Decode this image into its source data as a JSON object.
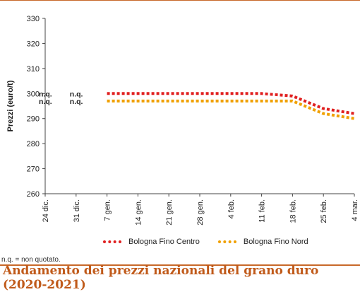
{
  "chart_data": {
    "type": "line",
    "title": "Andamento dei prezzi nazionali del grano duro (2020-2021)",
    "xlabel": "",
    "ylabel": "Prezzi (euro/t)",
    "ylim": [
      260,
      330
    ],
    "yticks": [
      260,
      270,
      280,
      290,
      300,
      310,
      320,
      330
    ],
    "categories": [
      "24 dic.",
      "31 dic.",
      "7 gen.",
      "14 gen.",
      "21 gen.",
      "28 gen.",
      "4 feb.",
      "11 feb.",
      "18 feb.",
      "25 feb.",
      "4 mar."
    ],
    "series": [
      {
        "name": "Bologna Fino Centro",
        "color": "#e02020",
        "values": [
          null,
          null,
          300,
          300,
          300,
          300,
          300,
          300,
          299,
          294,
          292
        ]
      },
      {
        "name": "Bologna Fino Nord",
        "color": "#f0a000",
        "values": [
          null,
          null,
          297,
          297,
          297,
          297,
          297,
          297,
          297,
          292,
          290
        ]
      }
    ],
    "annotations": [
      {
        "category": "24 dic.",
        "series": "Bologna Fino Centro",
        "text": "n.q.",
        "y": 300
      },
      {
        "category": "24 dic.",
        "series": "Bologna Fino Nord",
        "text": "n.q.",
        "y": 297
      },
      {
        "category": "31 dic.",
        "series": "Bologna Fino Centro",
        "text": "n.q.",
        "y": 300
      },
      {
        "category": "31 dic.",
        "series": "Bologna Fino Nord",
        "text": "n.q.",
        "y": 297
      }
    ],
    "footnote": "n.q. = non quotato.",
    "grid": false,
    "legend": "bottom"
  }
}
